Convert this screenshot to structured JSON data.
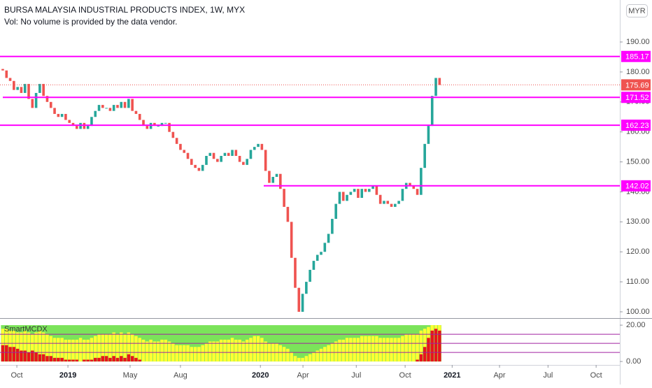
{
  "header": {
    "title": "BURSA MALAYSIA INDUSTRIAL PRODUCTS INDEX, 1W, MYX",
    "volume_note": "Vol: No volume is provided by the data vendor.",
    "currency": "MYR"
  },
  "chart_data": [
    {
      "type": "candlestick",
      "xlim": [
        -0.75,
        166.7
      ],
      "xticks": [
        {
          "value": 3.8,
          "label": "Oct"
        },
        {
          "value": 17.6,
          "label": "2019"
        },
        {
          "value": 34.4,
          "label": "May"
        },
        {
          "value": 48,
          "label": "Aug"
        },
        {
          "value": 69.6,
          "label": "2020"
        },
        {
          "value": 81.1,
          "label": "Apr"
        },
        {
          "value": 95.5,
          "label": "Jul"
        },
        {
          "value": 108.7,
          "label": "Oct"
        },
        {
          "value": 121.4,
          "label": "2021"
        },
        {
          "value": 134.2,
          "label": "Apr"
        },
        {
          "value": 147.3,
          "label": "Jul"
        },
        {
          "value": 160.3,
          "label": "Oct"
        }
      ],
      "ylim": [
        97.9,
        204
      ],
      "yticks": [
        {
          "value": 100,
          "label": "100.00"
        },
        {
          "value": 110,
          "label": "110.00"
        },
        {
          "value": 120,
          "label": "120.00"
        },
        {
          "value": 130,
          "label": "130.00"
        },
        {
          "value": 140,
          "label": "140.00"
        },
        {
          "value": 150,
          "label": "150.00"
        },
        {
          "value": 160,
          "label": "160.00"
        },
        {
          "value": 170,
          "label": "170.00"
        },
        {
          "value": 180,
          "label": "180.00"
        },
        {
          "value": 190,
          "label": "190.00"
        }
      ],
      "up_color": "#26a69a",
      "down_color": "#ef5350",
      "open": [
        181,
        180.5,
        178,
        177,
        174,
        175,
        173,
        176,
        171,
        168,
        173,
        176,
        172,
        170,
        168,
        166,
        165,
        166,
        164,
        163,
        162,
        161,
        163,
        161,
        162,
        165,
        167,
        169,
        168,
        168,
        167,
        169,
        168,
        170,
        168,
        171,
        167,
        166,
        164,
        162,
        161,
        163,
        162,
        162,
        163,
        163,
        160,
        158,
        156,
        154,
        153,
        151,
        149,
        148,
        147,
        149,
        152,
        153,
        151,
        150,
        152,
        153,
        152,
        154,
        152,
        150,
        149,
        151,
        154,
        155,
        156,
        154,
        147,
        143,
        145,
        146,
        141,
        135,
        130,
        118,
        108,
        100,
        106,
        110,
        114,
        117,
        119,
        120,
        123,
        126,
        131,
        136,
        140,
        137,
        139,
        140,
        141,
        138,
        141,
        140,
        141,
        142,
        139,
        136,
        137,
        136,
        135,
        136,
        137,
        141,
        143,
        142,
        141,
        139,
        148,
        156,
        162,
        172,
        178
      ],
      "close": [
        180.5,
        178,
        177,
        174,
        175,
        173,
        176,
        171,
        168,
        173,
        176,
        172,
        170,
        168,
        166,
        165,
        166,
        164,
        163,
        162,
        161,
        163,
        161,
        162,
        165,
        167,
        169,
        168,
        168,
        167,
        169,
        168,
        170,
        168,
        171,
        167,
        166,
        164,
        162,
        161,
        163,
        162,
        162,
        163,
        163,
        160,
        158,
        156,
        154,
        153,
        151,
        149,
        148,
        147,
        149,
        152,
        153,
        151,
        150,
        152,
        153,
        152,
        154,
        152,
        150,
        149,
        151,
        154,
        155,
        156,
        154,
        147,
        143,
        145,
        146,
        141,
        135,
        130,
        118,
        108,
        100,
        106,
        110,
        114,
        117,
        119,
        120,
        123,
        126,
        131,
        136,
        140,
        137,
        139,
        140,
        141,
        138,
        141,
        140,
        141,
        142,
        139,
        136,
        137,
        136,
        135,
        136,
        137,
        141,
        143,
        142,
        141,
        139,
        148,
        156,
        162,
        172,
        178,
        175.69
      ],
      "hlines": [
        185.17,
        171.52,
        162.23,
        142.02
      ],
      "hline_color": "#ff00ff"
    },
    {
      "type": "bar",
      "name": "SmartMCDX",
      "xlim": [
        -0.75,
        166.7
      ],
      "ylim": [
        -1.9,
        23.5
      ],
      "yticks": [
        {
          "value": 0,
          "label": "0.00"
        },
        {
          "value": 20,
          "label": "20.00"
        }
      ],
      "background_color": "#7be35a",
      "levels": [
        15,
        10,
        5
      ],
      "series": [
        {
          "color": "#ffff33",
          "values": [
            18,
            18,
            17,
            17,
            16,
            16,
            17,
            16,
            15,
            16,
            17,
            16,
            15,
            14,
            13,
            13,
            13,
            12,
            12,
            12,
            12,
            13,
            12,
            12,
            13,
            14,
            15,
            15,
            15,
            15,
            16,
            15,
            16,
            15,
            16,
            15,
            14,
            13,
            12,
            11,
            12,
            11,
            11,
            12,
            12,
            11,
            10,
            9,
            9,
            9,
            9,
            8,
            8,
            8,
            9,
            10,
            11,
            11,
            11,
            12,
            12,
            12,
            13,
            12,
            12,
            11,
            12,
            13,
            14,
            14,
            13,
            11,
            10,
            10,
            10,
            9,
            8,
            7,
            5,
            3,
            2,
            2,
            3,
            4,
            5,
            6,
            7,
            8,
            9,
            10,
            11,
            12,
            12,
            13,
            13,
            13,
            13,
            14,
            14,
            14,
            14,
            14,
            13,
            13,
            13,
            13,
            13,
            13,
            14,
            15,
            15,
            15,
            15,
            17,
            18,
            19,
            20,
            20,
            20
          ]
        },
        {
          "color": "#e8141c",
          "values": [
            9,
            9,
            8,
            8,
            7,
            6,
            6,
            5,
            6,
            5,
            4,
            4,
            3,
            3,
            2,
            2,
            2,
            1,
            1,
            1,
            1,
            0,
            1,
            1,
            1,
            2,
            2,
            3,
            3,
            2,
            3,
            2,
            3,
            2,
            4,
            3,
            2,
            1,
            0,
            0,
            0,
            0,
            0,
            0,
            0,
            0,
            0,
            0,
            0,
            0,
            0,
            0,
            0,
            0,
            0,
            0,
            0,
            0,
            0,
            0,
            0,
            0,
            0,
            0,
            0,
            0,
            0,
            0,
            0,
            0,
            0,
            0,
            0,
            0,
            0,
            0,
            0,
            0,
            0,
            0,
            0,
            0,
            0,
            0,
            0,
            0,
            0,
            0,
            0,
            0,
            0,
            0,
            0,
            0,
            0,
            0,
            0,
            0,
            0,
            0,
            0,
            0,
            0,
            0,
            0,
            0,
            0,
            0,
            0,
            0,
            0,
            0,
            1,
            4,
            8,
            13,
            17,
            18,
            17
          ]
        }
      ]
    }
  ]
}
